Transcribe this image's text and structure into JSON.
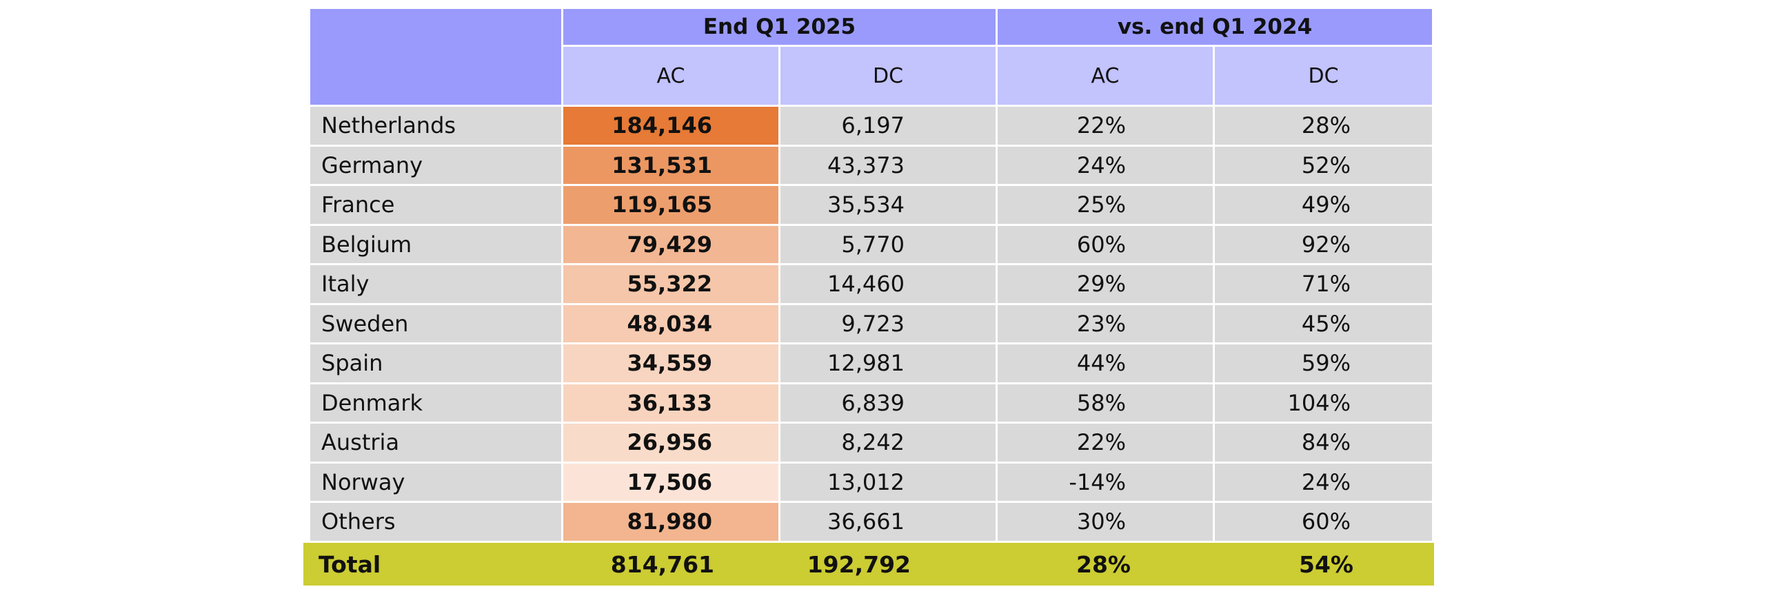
{
  "chart_data": {
    "type": "table",
    "header_groups": [
      {
        "label": "End Q1 2025"
      },
      {
        "label": "vs. end Q1 2024"
      }
    ],
    "sub_headers": [
      "AC",
      "DC",
      "AC",
      "DC"
    ],
    "rows": [
      {
        "country": "Netherlands",
        "ac": "184,146",
        "dc": "6,197",
        "ac_change": "22%",
        "dc_change": "28%",
        "ac_value": 184146
      },
      {
        "country": "Germany",
        "ac": "131,531",
        "dc": "43,373",
        "ac_change": "24%",
        "dc_change": "52%",
        "ac_value": 131531
      },
      {
        "country": "France",
        "ac": "119,165",
        "dc": "35,534",
        "ac_change": "25%",
        "dc_change": "49%",
        "ac_value": 119165
      },
      {
        "country": "Belgium",
        "ac": "79,429",
        "dc": "5,770",
        "ac_change": "60%",
        "dc_change": "92%",
        "ac_value": 79429
      },
      {
        "country": "Italy",
        "ac": "55,322",
        "dc": "14,460",
        "ac_change": "29%",
        "dc_change": "71%",
        "ac_value": 55322
      },
      {
        "country": "Sweden",
        "ac": "48,034",
        "dc": "9,723",
        "ac_change": "23%",
        "dc_change": "45%",
        "ac_value": 48034
      },
      {
        "country": "Spain",
        "ac": "34,559",
        "dc": "12,981",
        "ac_change": "44%",
        "dc_change": "59%",
        "ac_value": 34559
      },
      {
        "country": "Denmark",
        "ac": "36,133",
        "dc": "6,839",
        "ac_change": "58%",
        "dc_change": "104%",
        "ac_value": 36133
      },
      {
        "country": "Austria",
        "ac": "26,956",
        "dc": "8,242",
        "ac_change": "22%",
        "dc_change": "84%",
        "ac_value": 26956
      },
      {
        "country": "Norway",
        "ac": "17,506",
        "dc": "13,012",
        "ac_change": "-14%",
        "dc_change": "24%",
        "ac_value": 17506
      },
      {
        "country": "Others",
        "ac": "81,980",
        "dc": "36,661",
        "ac_change": "30%",
        "dc_change": "60%",
        "ac_value": 81980
      }
    ],
    "total": {
      "label": "Total",
      "ac": "814,761",
      "dc": "192,792",
      "ac_change": "28%",
      "dc_change": "54%"
    },
    "colors": {
      "header_top": "#9a9afc",
      "header_sub": "#c3c3fd",
      "row_bg": "#d9d9d9",
      "heat_high": "#e67a36",
      "heat_low": "#fbe4d7",
      "total_bg": "#cccc33"
    }
  }
}
